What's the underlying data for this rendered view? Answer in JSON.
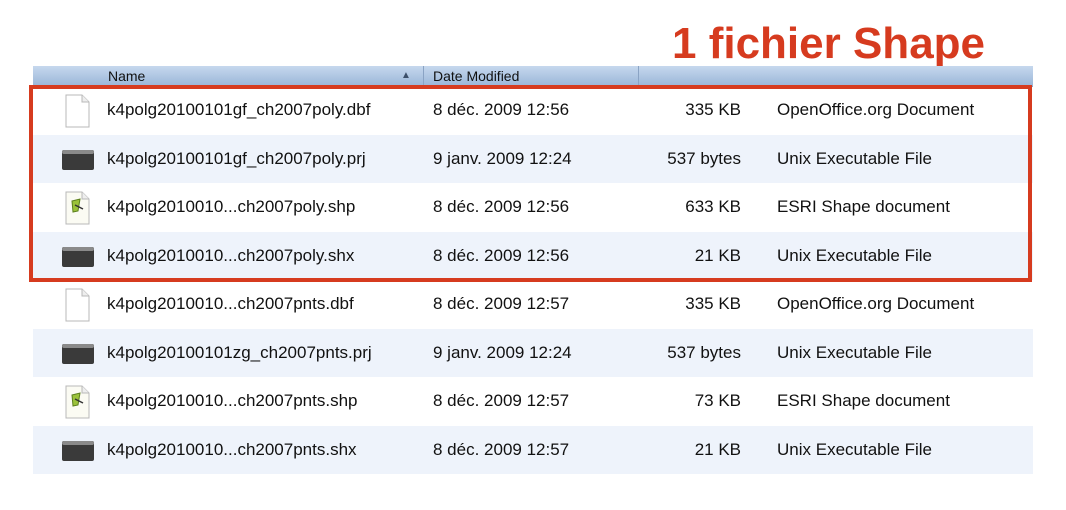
{
  "annotation": "1 fichier Shape",
  "header": {
    "name": "Name",
    "date_modified": "Date Modified",
    "sort_arrow": "▲"
  },
  "colors": {
    "accent": "#d63b1f",
    "header": "#a9c2e2",
    "alt_row": "#eef3fb"
  },
  "files": [
    {
      "name": "k4polg20100101gf_ch2007poly.dbf",
      "date": "8 déc. 2009 12:56",
      "size": "335 KB",
      "kind": "OpenOffice.org Document",
      "icon": "document-icon"
    },
    {
      "name": "k4polg20100101gf_ch2007poly.prj",
      "date": "9 janv. 2009 12:24",
      "size": "537 bytes",
      "kind": "Unix Executable File",
      "icon": "executable-icon"
    },
    {
      "name": "k4polg2010010...ch2007poly.shp",
      "date": "8 déc. 2009 12:56",
      "size": "633 KB",
      "kind": "ESRI Shape document",
      "icon": "shp-icon"
    },
    {
      "name": "k4polg2010010...ch2007poly.shx",
      "date": "8 déc. 2009 12:56",
      "size": "21 KB",
      "kind": "Unix Executable File",
      "icon": "executable-icon"
    },
    {
      "name": "k4polg2010010...ch2007pnts.dbf",
      "date": "8 déc. 2009 12:57",
      "size": "335 KB",
      "kind": "OpenOffice.org Document",
      "icon": "document-icon"
    },
    {
      "name": "k4polg20100101zg_ch2007pnts.prj",
      "date": "9 janv. 2009 12:24",
      "size": "537 bytes",
      "kind": "Unix Executable File",
      "icon": "executable-icon"
    },
    {
      "name": "k4polg2010010...ch2007pnts.shp",
      "date": "8 déc. 2009 12:57",
      "size": "73 KB",
      "kind": "ESRI Shape document",
      "icon": "shp-icon"
    },
    {
      "name": "k4polg2010010...ch2007pnts.shx",
      "date": "8 déc. 2009 12:57",
      "size": "21 KB",
      "kind": "Unix Executable File",
      "icon": "executable-icon"
    }
  ]
}
